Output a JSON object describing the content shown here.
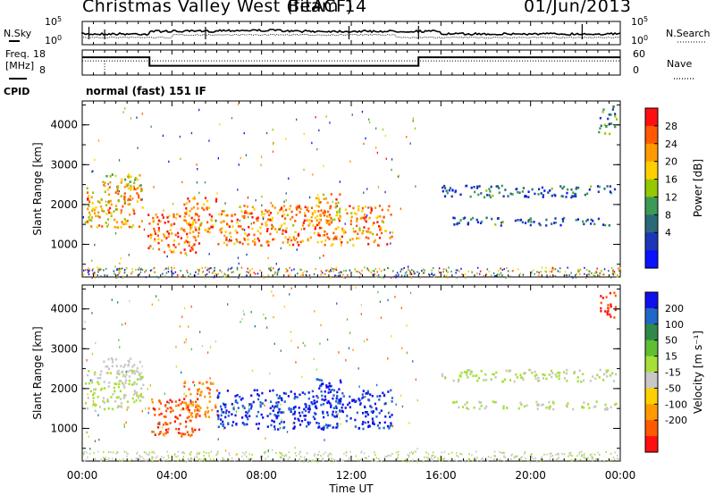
{
  "header": {
    "station": "Christmas Valley West (fitACF)",
    "beam": "Beam 14",
    "date": "01/Jun/2013"
  },
  "sky_panel": {
    "left_label": "N.Sky",
    "right_label": "N.Search",
    "ticks": [
      "10^5",
      "10^0"
    ],
    "color": "#000000"
  },
  "freq_panel": {
    "label_line1": "Freq.",
    "label_line2": "[MHz]",
    "left_ticks": [
      "18",
      "8"
    ],
    "right_ticks": [
      "60",
      "0"
    ],
    "right_label": "Nave",
    "freq_steps": [
      {
        "t0": 0,
        "t1": 3,
        "mhz": 15.2
      },
      {
        "t0": 3,
        "t1": 15,
        "mhz": 10.8
      },
      {
        "t0": 15,
        "t1": 24,
        "mhz": 15.2
      }
    ],
    "nave_level": 34
  },
  "cpid": {
    "label": "CPID",
    "text": "normal (fast) 151 IF"
  },
  "power_panel": {
    "ylabel": "Slant Range [km]",
    "yticks": [
      "4000",
      "3000",
      "2000",
      "1000"
    ],
    "colorbar_label": "Power [dB]",
    "colorbar_ticks": [
      "28",
      "24",
      "20",
      "16",
      "12",
      "8",
      "4"
    ],
    "colorbar_colors": [
      "#ff1010",
      "#ff5a00",
      "#ff9a00",
      "#ffd000",
      "#96c800",
      "#3c9a55",
      "#2a6a78",
      "#1c36b8",
      "#0a12ff"
    ]
  },
  "velocity_panel": {
    "ylabel": "Slant Range [km]",
    "yticks": [
      "4000",
      "3000",
      "2000",
      "1000"
    ],
    "colorbar_label": "Velocity [m s⁻¹]",
    "colorbar_ticks": [
      "200",
      "100",
      "50",
      "15",
      "-15",
      "-50",
      "-100",
      "-200"
    ],
    "colorbar_colors": [
      "#1010ee",
      "#1f68c8",
      "#2f8a4a",
      "#5fbe32",
      "#a6df3a",
      "#c8c8c8",
      "#ffd000",
      "#ff9a00",
      "#ff5a00",
      "#ff1010"
    ]
  },
  "xaxis": {
    "label": "Time UT",
    "ticks": [
      "00:00",
      "04:00",
      "08:00",
      "12:00",
      "16:00",
      "20:00",
      "00:00"
    ]
  },
  "chart_data": {
    "type": "heatmap",
    "title": "Christmas Valley West (fitACF) Beam 14 01/Jun/2013",
    "xlabel": "Time UT",
    "ylabel": "Slant Range [km]",
    "xlim_hours": [
      0,
      24
    ],
    "ylim_km": [
      180,
      4600
    ],
    "power_scale_db": [
      0,
      32
    ],
    "velocity_scale_ms": [
      -250,
      250
    ],
    "scatter_regions": [
      {
        "t0": 0.1,
        "t1": 2.7,
        "r0": 1450,
        "r1": 2500,
        "power": 22,
        "velocity": 0
      },
      {
        "t0": 0.8,
        "t1": 2.6,
        "r0": 2400,
        "r1": 2800,
        "power": 18,
        "velocity": -20
      },
      {
        "t0": 2.9,
        "t1": 5.2,
        "r0": 800,
        "r1": 1800,
        "power": 26,
        "velocity": -180
      },
      {
        "t0": 4.5,
        "t1": 6.0,
        "r0": 1300,
        "r1": 2200,
        "power": 24,
        "velocity": -140
      },
      {
        "t0": 6.0,
        "t1": 13.8,
        "r0": 1000,
        "r1": 2000,
        "power": 24,
        "velocity": 210
      },
      {
        "t0": 10.4,
        "t1": 11.5,
        "r0": 1600,
        "r1": 2300,
        "power": 22,
        "velocity": 210
      },
      {
        "t0": 16.0,
        "t1": 23.8,
        "r0": 2200,
        "r1": 2500,
        "power": 8,
        "velocity": 0
      },
      {
        "t0": 16.5,
        "t1": 23.8,
        "r0": 1500,
        "r1": 1700,
        "power": 8,
        "velocity": 0
      },
      {
        "t0": 23.0,
        "t1": 23.8,
        "r0": 3800,
        "r1": 4500,
        "power": 10,
        "velocity": -200
      }
    ]
  }
}
